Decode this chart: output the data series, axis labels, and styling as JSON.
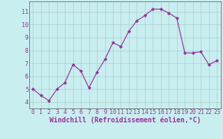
{
  "x": [
    0,
    1,
    2,
    3,
    4,
    5,
    6,
    7,
    8,
    9,
    10,
    11,
    12,
    13,
    14,
    15,
    16,
    17,
    18,
    19,
    20,
    21,
    22,
    23
  ],
  "y": [
    5.0,
    4.5,
    4.1,
    5.0,
    5.5,
    6.9,
    6.4,
    5.1,
    6.3,
    7.3,
    8.6,
    8.3,
    9.5,
    10.3,
    10.7,
    11.2,
    11.2,
    10.9,
    10.5,
    7.8,
    7.8,
    7.9,
    6.9,
    7.2
  ],
  "line_color": "#993399",
  "marker": "D",
  "marker_size": 2.2,
  "bg_color": "#c8eef0",
  "grid_color": "#aacccc",
  "xlabel": "Windchill (Refroidissement éolien,°C)",
  "ylim": [
    3.5,
    11.8
  ],
  "xlim": [
    -0.5,
    23.5
  ],
  "yticks": [
    4,
    5,
    6,
    7,
    8,
    9,
    10,
    11
  ],
  "xticks": [
    0,
    1,
    2,
    3,
    4,
    5,
    6,
    7,
    8,
    9,
    10,
    11,
    12,
    13,
    14,
    15,
    16,
    17,
    18,
    19,
    20,
    21,
    22,
    23
  ],
  "tick_label_fontsize": 6.0,
  "xlabel_fontsize": 7.0,
  "label_color": "#993399",
  "tick_color": "#993399",
  "spine_color": "#666666"
}
